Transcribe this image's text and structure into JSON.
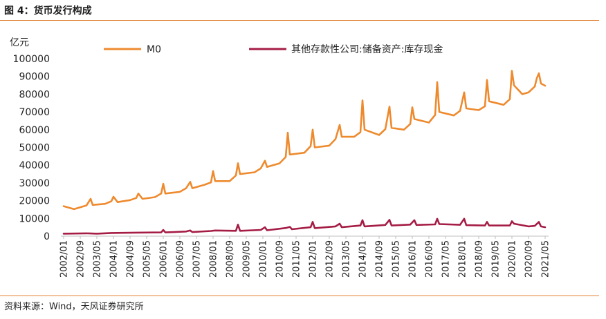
{
  "figure": {
    "title": "图 4：货币发行构成",
    "source": "资料来源：Wind，天风证券研究所"
  },
  "colors": {
    "m0": "#EE8A2E",
    "cash": "#A51C45",
    "rule": "#E07B2A"
  },
  "chart_data": {
    "type": "line",
    "title": "货币发行构成",
    "ylabel": "亿元",
    "ylim": [
      0,
      100000
    ],
    "yticks": [
      0,
      10000,
      20000,
      30000,
      40000,
      50000,
      60000,
      70000,
      80000,
      90000,
      100000
    ],
    "ytick_labels": [
      "0",
      "10000",
      "20000",
      "30000",
      "40000",
      "50000",
      "60000",
      "70000",
      "80000",
      "90000",
      "100000"
    ],
    "xtick_labels": [
      "2002/01",
      "2002/09",
      "2003/05",
      "2004/01",
      "2004/09",
      "2005/05",
      "2006/01",
      "2006/09",
      "2007/05",
      "2008/01",
      "2008/09",
      "2009/05",
      "2010/01",
      "2010/09",
      "2011/05",
      "2012/01",
      "2012/09",
      "2013/05",
      "2014/01",
      "2014/09",
      "2015/05",
      "2016/01",
      "2016/09",
      "2017/05",
      "2018/01",
      "2018/09",
      "2019/05",
      "2020/01",
      "2020/09",
      "2021/05"
    ],
    "legend_position": "top",
    "series": [
      {
        "name": "M0",
        "points": [
          [
            "2002/01",
            16900
          ],
          [
            "2002/06",
            15200
          ],
          [
            "2002/12",
            17300
          ],
          [
            "2003/02",
            21000
          ],
          [
            "2003/03",
            17600
          ],
          [
            "2003/09",
            18200
          ],
          [
            "2003/12",
            19700
          ],
          [
            "2004/01",
            22200
          ],
          [
            "2004/03",
            19200
          ],
          [
            "2004/09",
            20300
          ],
          [
            "2004/12",
            21500
          ],
          [
            "2005/01",
            24000
          ],
          [
            "2005/03",
            21000
          ],
          [
            "2005/09",
            22000
          ],
          [
            "2005/12",
            24000
          ],
          [
            "2006/01",
            29500
          ],
          [
            "2006/02",
            24000
          ],
          [
            "2006/09",
            25000
          ],
          [
            "2006/12",
            27000
          ],
          [
            "2007/02",
            30600
          ],
          [
            "2007/03",
            27000
          ],
          [
            "2007/09",
            29000
          ],
          [
            "2007/12",
            30300
          ],
          [
            "2008/01",
            36700
          ],
          [
            "2008/02",
            31000
          ],
          [
            "2008/09",
            31000
          ],
          [
            "2008/12",
            34200
          ],
          [
            "2009/01",
            41100
          ],
          [
            "2009/02",
            35000
          ],
          [
            "2009/09",
            36000
          ],
          [
            "2009/12",
            38200
          ],
          [
            "2010/02",
            42500
          ],
          [
            "2010/03",
            39000
          ],
          [
            "2010/09",
            41000
          ],
          [
            "2010/12",
            44600
          ],
          [
            "2011/01",
            58300
          ],
          [
            "2011/02",
            46000
          ],
          [
            "2011/09",
            47000
          ],
          [
            "2011/12",
            50700
          ],
          [
            "2012/01",
            60000
          ],
          [
            "2012/02",
            50000
          ],
          [
            "2012/09",
            51000
          ],
          [
            "2012/12",
            54700
          ],
          [
            "2013/02",
            62700
          ],
          [
            "2013/03",
            56000
          ],
          [
            "2013/09",
            56000
          ],
          [
            "2013/12",
            58600
          ],
          [
            "2014/01",
            76500
          ],
          [
            "2014/02",
            60000
          ],
          [
            "2014/09",
            57000
          ],
          [
            "2014/12",
            60300
          ],
          [
            "2015/02",
            73000
          ],
          [
            "2015/03",
            61000
          ],
          [
            "2015/09",
            60000
          ],
          [
            "2015/12",
            63200
          ],
          [
            "2016/01",
            72600
          ],
          [
            "2016/02",
            66000
          ],
          [
            "2016/09",
            64000
          ],
          [
            "2016/12",
            68300
          ],
          [
            "2017/01",
            86800
          ],
          [
            "2017/02",
            70000
          ],
          [
            "2017/09",
            68000
          ],
          [
            "2017/12",
            70600
          ],
          [
            "2018/02",
            81000
          ],
          [
            "2018/03",
            72000
          ],
          [
            "2018/09",
            71000
          ],
          [
            "2018/12",
            73200
          ],
          [
            "2019/01",
            88000
          ],
          [
            "2019/02",
            76000
          ],
          [
            "2019/09",
            74000
          ],
          [
            "2019/12",
            77200
          ],
          [
            "2020/01",
            93200
          ],
          [
            "2020/02",
            85000
          ],
          [
            "2020/06",
            80000
          ],
          [
            "2020/09",
            81000
          ],
          [
            "2020/12",
            84300
          ],
          [
            "2021/01",
            89000
          ],
          [
            "2021/02",
            91800
          ],
          [
            "2021/03",
            86000
          ],
          [
            "2021/05",
            84800
          ]
        ]
      },
      {
        "name": "其他存款性公司:储备资产:库存现金",
        "points": [
          [
            "2002/01",
            1400
          ],
          [
            "2002/12",
            1600
          ],
          [
            "2003/05",
            1400
          ],
          [
            "2003/12",
            1800
          ],
          [
            "2004/12",
            2000
          ],
          [
            "2005/12",
            2100
          ],
          [
            "2006/01",
            3500
          ],
          [
            "2006/02",
            2100
          ],
          [
            "2006/12",
            2600
          ],
          [
            "2007/02",
            3200
          ],
          [
            "2007/03",
            2300
          ],
          [
            "2007/12",
            2900
          ],
          [
            "2008/02",
            3200
          ],
          [
            "2008/12",
            3000
          ],
          [
            "2009/01",
            6500
          ],
          [
            "2009/02",
            3000
          ],
          [
            "2009/12",
            3500
          ],
          [
            "2010/02",
            5000
          ],
          [
            "2010/03",
            3300
          ],
          [
            "2010/12",
            4600
          ],
          [
            "2011/02",
            5200
          ],
          [
            "2011/03",
            3900
          ],
          [
            "2011/12",
            5000
          ],
          [
            "2012/01",
            8000
          ],
          [
            "2012/02",
            4500
          ],
          [
            "2012/12",
            5500
          ],
          [
            "2013/02",
            7000
          ],
          [
            "2013/03",
            5000
          ],
          [
            "2013/12",
            6000
          ],
          [
            "2014/01",
            9000
          ],
          [
            "2014/02",
            5500
          ],
          [
            "2014/12",
            6300
          ],
          [
            "2015/02",
            9200
          ],
          [
            "2015/03",
            6000
          ],
          [
            "2015/12",
            6500
          ],
          [
            "2016/02",
            9000
          ],
          [
            "2016/03",
            6300
          ],
          [
            "2016/12",
            6600
          ],
          [
            "2017/01",
            9800
          ],
          [
            "2017/02",
            6800
          ],
          [
            "2017/12",
            6400
          ],
          [
            "2018/02",
            9800
          ],
          [
            "2018/03",
            6200
          ],
          [
            "2018/12",
            6000
          ],
          [
            "2019/01",
            8000
          ],
          [
            "2019/02",
            6000
          ],
          [
            "2019/12",
            6000
          ],
          [
            "2020/01",
            8400
          ],
          [
            "2020/02",
            7000
          ],
          [
            "2020/09",
            5500
          ],
          [
            "2020/12",
            5800
          ],
          [
            "2021/02",
            8000
          ],
          [
            "2021/03",
            5500
          ],
          [
            "2021/05",
            5000
          ]
        ]
      }
    ]
  }
}
